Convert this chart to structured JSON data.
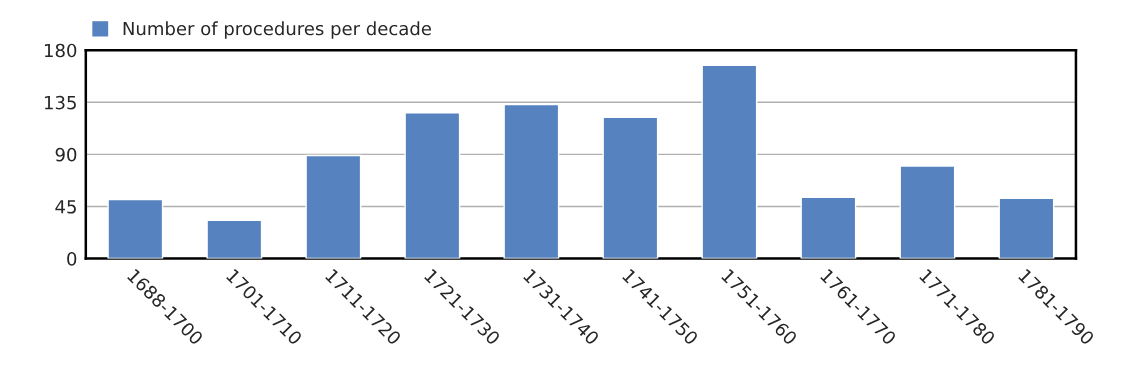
{
  "chart_data": {
    "type": "bar",
    "categories": [
      "1688-1700",
      "1701-1710",
      "1711-1720",
      "1721-1730",
      "1731-1740",
      "1741-1750",
      "1751-1760",
      "1761-1770",
      "1771-1780",
      "1781-1790"
    ],
    "series": [
      {
        "name": "Number of procedures per decade",
        "color": "#5683bf",
        "values": [
          51,
          33,
          89,
          126,
          133,
          122,
          167,
          53,
          80,
          52
        ]
      }
    ],
    "ylim": [
      0,
      180
    ],
    "yticks": [
      0,
      45,
      90,
      135,
      180
    ],
    "grid": "y",
    "legend": "top left"
  }
}
